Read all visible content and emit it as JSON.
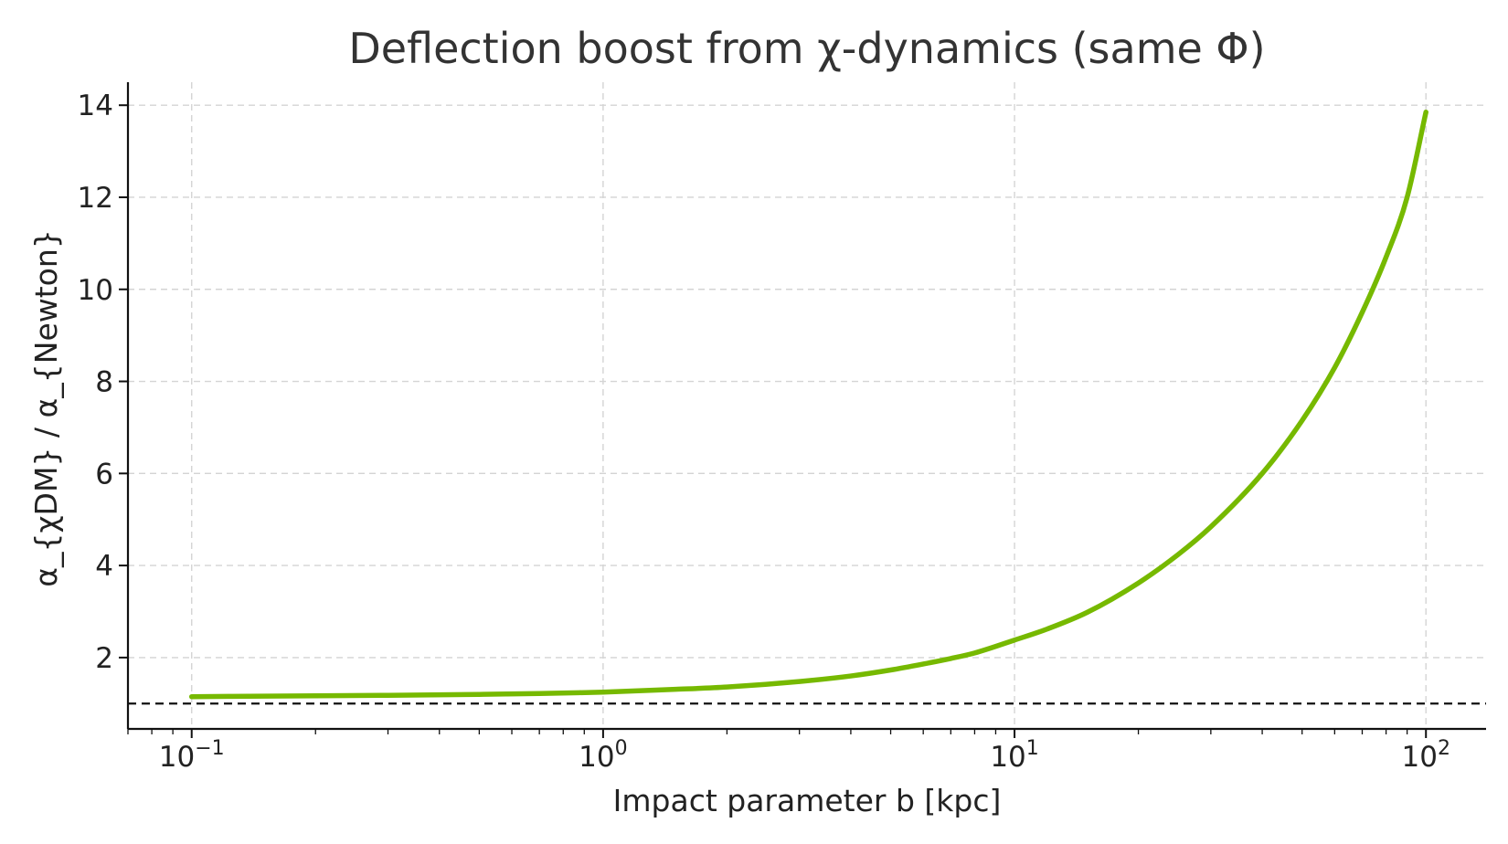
{
  "chart_data": {
    "type": "line",
    "title": "Deflection boost from χ-dynamics (same Φ)",
    "xlabel": "Impact parameter b [kpc]",
    "ylabel": "α_{χDM} / α_{Newton}",
    "xscale": "log",
    "xlim": [
      0.07,
      140
    ],
    "ylim": [
      0.45,
      14.5
    ],
    "x_ticks": [
      {
        "value": 0.1,
        "base": "10",
        "exp": "−1"
      },
      {
        "value": 1,
        "base": "10",
        "exp": "0"
      },
      {
        "value": 10,
        "base": "10",
        "exp": "1"
      },
      {
        "value": 100,
        "base": "10",
        "exp": "2"
      }
    ],
    "y_ticks": [
      {
        "value": 2,
        "label": "2"
      },
      {
        "value": 4,
        "label": "4"
      },
      {
        "value": 6,
        "label": "6"
      },
      {
        "value": 8,
        "label": "8"
      },
      {
        "value": 10,
        "label": "10"
      },
      {
        "value": 12,
        "label": "12"
      },
      {
        "value": 14,
        "label": "14"
      }
    ],
    "grid": true,
    "reference_line": {
      "y": 1,
      "style": "dashed",
      "color": "#111111"
    },
    "series": [
      {
        "color": "#76b900",
        "x": [
          0.1,
          0.2,
          0.3,
          0.5,
          0.7,
          1,
          1.5,
          2,
          3,
          4,
          5,
          6,
          7,
          8,
          10,
          12,
          15,
          20,
          25,
          30,
          40,
          50,
          60,
          70,
          80,
          90,
          100
        ],
        "y": [
          1.15,
          1.17,
          1.18,
          1.2,
          1.22,
          1.25,
          1.31,
          1.36,
          1.48,
          1.6,
          1.73,
          1.86,
          1.98,
          2.1,
          2.38,
          2.62,
          2.98,
          3.62,
          4.24,
          4.84,
          6.0,
          7.15,
          8.3,
          9.5,
          10.7,
          12.0,
          13.85
        ]
      }
    ]
  }
}
